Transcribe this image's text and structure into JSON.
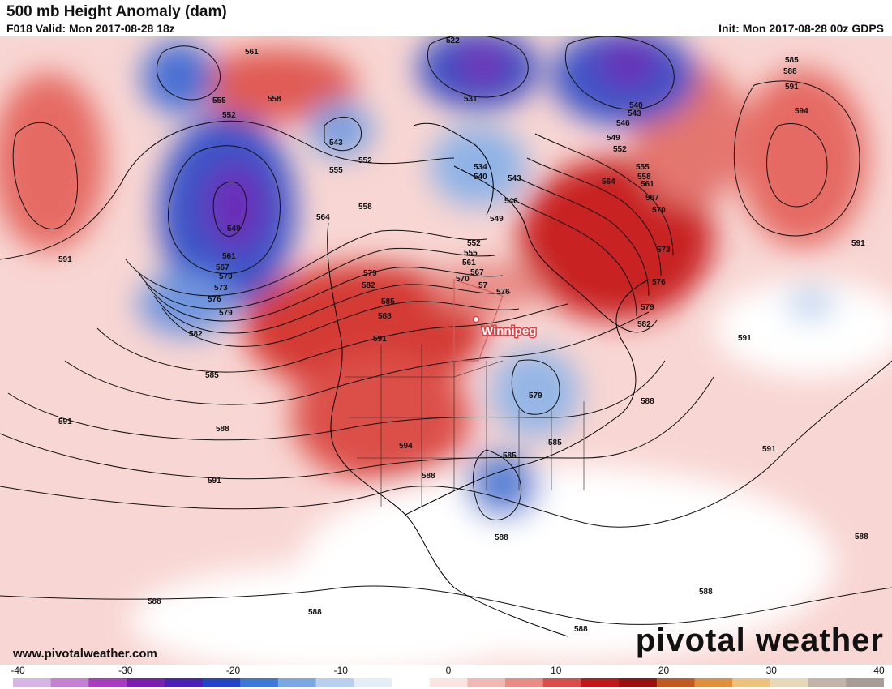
{
  "header": {
    "title": "500 mb Height Anomaly (dam)",
    "valid": "F018 Valid: Mon 2017-08-28 18z",
    "init": "Init: Mon 2017-08-28 00z GDPS"
  },
  "footer": {
    "website": "www.pivotalweather.com",
    "brand": "pivotal weather"
  },
  "map": {
    "city_marker": "Winnipeg",
    "contour_labels": [
      {
        "id": "c-561-a",
        "text": "561"
      },
      {
        "id": "c-558-a",
        "text": "558"
      },
      {
        "id": "c-555-a",
        "text": "555"
      },
      {
        "id": "c-552-a",
        "text": "552"
      },
      {
        "id": "c-543-a",
        "text": "543"
      },
      {
        "id": "c-549-a",
        "text": "549"
      },
      {
        "id": "c-561-b",
        "text": "561"
      },
      {
        "id": "c-567-a",
        "text": "567"
      },
      {
        "id": "c-570-a",
        "text": "570"
      },
      {
        "id": "c-573-a",
        "text": "573"
      },
      {
        "id": "c-576-a",
        "text": "576"
      },
      {
        "id": "c-579-a",
        "text": "579"
      },
      {
        "id": "c-582-a",
        "text": "582"
      },
      {
        "id": "c-585-a",
        "text": "585"
      },
      {
        "id": "c-588-a",
        "text": "588"
      },
      {
        "id": "c-591-a",
        "text": "591"
      },
      {
        "id": "c-591-b",
        "text": "591"
      },
      {
        "id": "c-591-c",
        "text": "591"
      },
      {
        "id": "c-555-b",
        "text": "555"
      },
      {
        "id": "c-552-b",
        "text": "552"
      },
      {
        "id": "c-558-b",
        "text": "558"
      },
      {
        "id": "c-564-a",
        "text": "564"
      },
      {
        "id": "c-579-b",
        "text": "579"
      },
      {
        "id": "c-582-b",
        "text": "582"
      },
      {
        "id": "c-585-b",
        "text": "585"
      },
      {
        "id": "c-588-b",
        "text": "588"
      },
      {
        "id": "c-591-d",
        "text": "591"
      },
      {
        "id": "c-594-a",
        "text": "594"
      },
      {
        "id": "c-522-a",
        "text": "522"
      },
      {
        "id": "c-531-a",
        "text": "531"
      },
      {
        "id": "c-534-a",
        "text": "534"
      },
      {
        "id": "c-540-a",
        "text": "540"
      },
      {
        "id": "c-543-b",
        "text": "543"
      },
      {
        "id": "c-546-a",
        "text": "546"
      },
      {
        "id": "c-549-b",
        "text": "549"
      },
      {
        "id": "c-552-c",
        "text": "552"
      },
      {
        "id": "c-555-c",
        "text": "555"
      },
      {
        "id": "c-561-c",
        "text": "561"
      },
      {
        "id": "c-567-b",
        "text": "567"
      },
      {
        "id": "c-570-b",
        "text": "570"
      },
      {
        "id": "c-57-a",
        "text": "57"
      },
      {
        "id": "c-576-b",
        "text": "576"
      },
      {
        "id": "c-540-b",
        "text": "540"
      },
      {
        "id": "c-543-c",
        "text": "543"
      },
      {
        "id": "c-546-b",
        "text": "546"
      },
      {
        "id": "c-549-c",
        "text": "549"
      },
      {
        "id": "c-552-d",
        "text": "552"
      },
      {
        "id": "c-555-d",
        "text": "555"
      },
      {
        "id": "c-558-c",
        "text": "558"
      },
      {
        "id": "c-561-d",
        "text": "561"
      },
      {
        "id": "c-564-b",
        "text": "564"
      },
      {
        "id": "c-567-c",
        "text": "567"
      },
      {
        "id": "c-570-c",
        "text": "570"
      },
      {
        "id": "c-573-b",
        "text": "573"
      },
      {
        "id": "c-576-c",
        "text": "576"
      },
      {
        "id": "c-579-c",
        "text": "579"
      },
      {
        "id": "c-582-c",
        "text": "582"
      },
      {
        "id": "c-585-c",
        "text": "585"
      },
      {
        "id": "c-588-c",
        "text": "588"
      },
      {
        "id": "c-591-e",
        "text": "591"
      },
      {
        "id": "c-594-b",
        "text": "594"
      },
      {
        "id": "c-591-f",
        "text": "591"
      },
      {
        "id": "c-591-g",
        "text": "591"
      },
      {
        "id": "c-588-d",
        "text": "588"
      },
      {
        "id": "c-591-h",
        "text": "591"
      },
      {
        "id": "c-579-d",
        "text": "579"
      },
      {
        "id": "c-585-d",
        "text": "585"
      },
      {
        "id": "c-585-e",
        "text": "585"
      },
      {
        "id": "c-588-e",
        "text": "588"
      },
      {
        "id": "c-588-f",
        "text": "588"
      },
      {
        "id": "c-588-g",
        "text": "588"
      },
      {
        "id": "c-588-h",
        "text": "588"
      },
      {
        "id": "c-588-i",
        "text": "588"
      },
      {
        "id": "c-588-j",
        "text": "588"
      },
      {
        "id": "c-588-k",
        "text": "588"
      }
    ]
  },
  "colorbar": {
    "ticks": [
      "-40",
      "-30",
      "-20",
      "-10",
      "0",
      "10",
      "20",
      "30",
      "40"
    ],
    "colors": [
      "#d8b4e6",
      "#c77fd6",
      "#a93cc0",
      "#7c1fb0",
      "#4b1fb5",
      "#2244c8",
      "#3d78d8",
      "#7aa8e3",
      "#b7d0ef",
      "#e4eef9",
      "#ffffff",
      "#fbe3e1",
      "#f4b8b4",
      "#ec8a84",
      "#dc4c48",
      "#c01818",
      "#9c0f0f",
      "#c25a1f",
      "#e0903a",
      "#edc27a",
      "#e8d8b8",
      "#c4b4a8",
      "#a89c96"
    ]
  }
}
